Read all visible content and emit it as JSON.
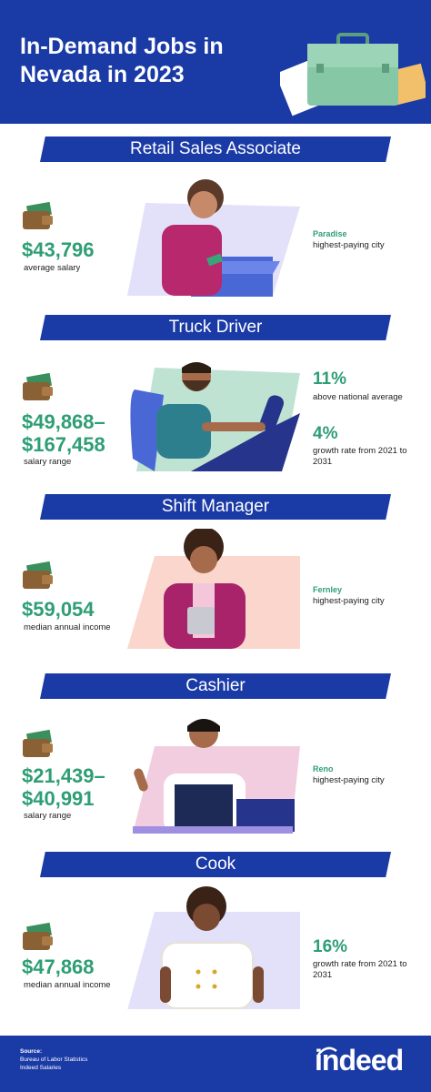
{
  "header": {
    "title": "In-Demand Jobs in Nevada in 2023"
  },
  "jobs": [
    {
      "name": "Retail Sales Associate",
      "value": "$43,796",
      "value_label": "average salary",
      "right": {
        "city": "Paradise",
        "city_label": "highest-paying city"
      }
    },
    {
      "name": "Truck Driver",
      "value": "$49,868–",
      "value2": "$167,458",
      "value_label": "salary range",
      "right": {
        "stat1": "11%",
        "stat1_label": "above national average",
        "stat2": "4%",
        "stat2_label": "growth rate from 2021 to 2031"
      }
    },
    {
      "name": "Shift Manager",
      "value": "$59,054",
      "value_label": "median annual income",
      "right": {
        "city": "Fernley",
        "city_label": "highest-paying city"
      }
    },
    {
      "name": "Cashier",
      "value": "$21,439–",
      "value2": "$40,991",
      "value_label": "salary range",
      "right": {
        "city": "Reno",
        "city_label": "highest-paying city"
      }
    },
    {
      "name": "Cook",
      "value": "$47,868",
      "value_label": "median annual income",
      "right": {
        "stat1": "16%",
        "stat1_label": "growth rate from 2021 to 2031"
      }
    }
  ],
  "footer": {
    "source_title": "Source:",
    "sources": [
      "Bureau of Labor Statistics",
      "Indeed Salaries"
    ],
    "logo": "indeed"
  },
  "icons": {
    "wallet": "wallet-icon",
    "briefcase": "briefcase-icon"
  },
  "colors": {
    "brand_blue": "#1a3aa6",
    "accent_green": "#2e9e75"
  }
}
